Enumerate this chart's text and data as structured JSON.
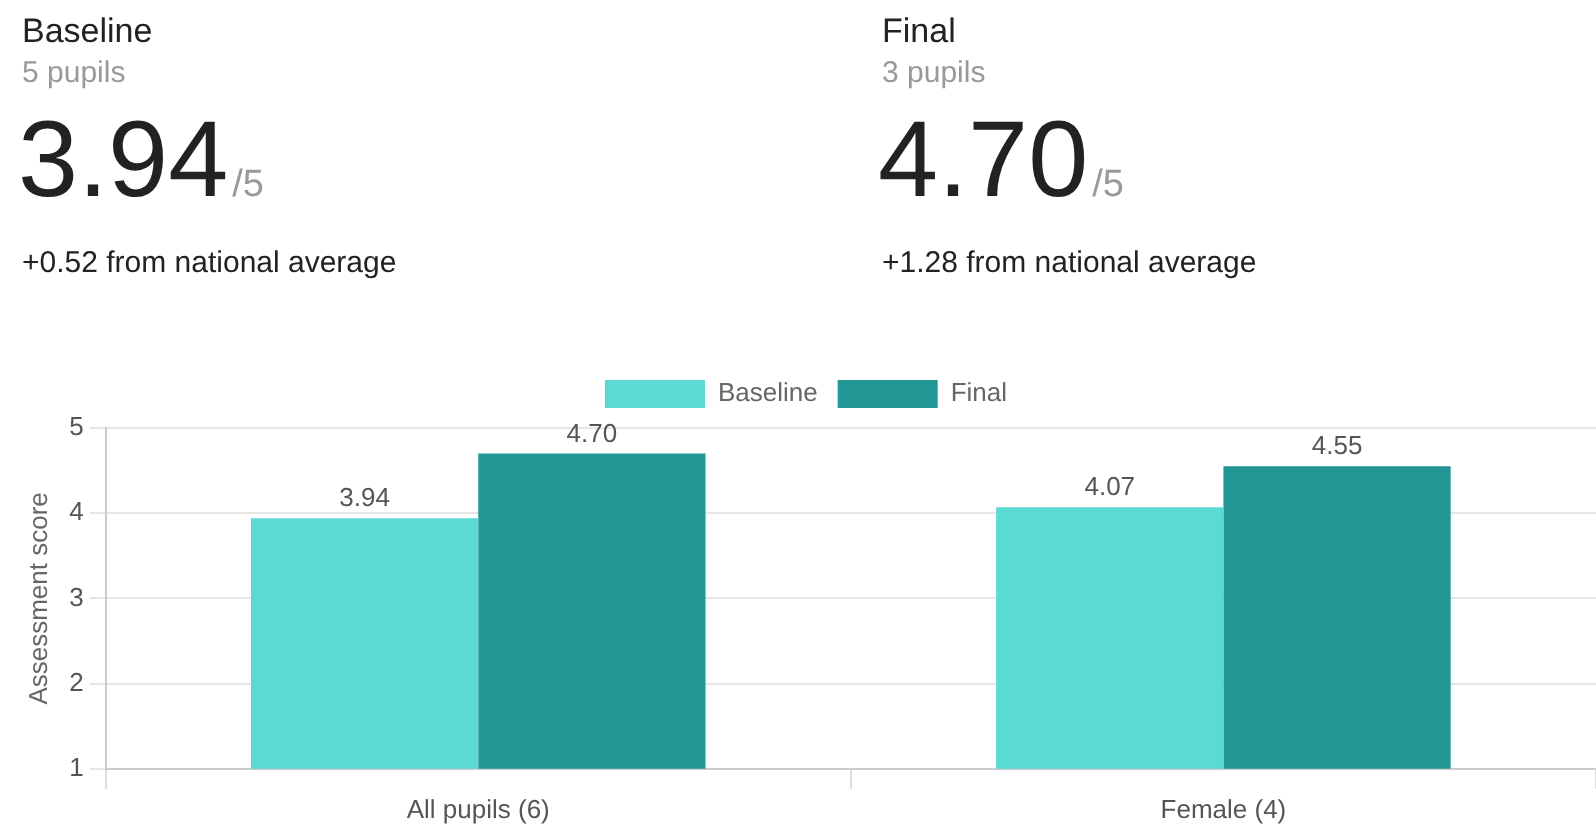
{
  "chart_data": [
    {
      "type": "other",
      "title": "Baseline",
      "subtitle": "5 pupils",
      "annotations": [
        "3.94",
        "/5",
        "+0.52 from national average"
      ]
    },
    {
      "type": "other",
      "title": "Final",
      "subtitle": "3 pupils",
      "annotations": [
        "4.70",
        "/5",
        "+1.28 from national average"
      ]
    },
    {
      "type": "bar",
      "ylabel": "Assessment score",
      "categories": [
        "All pupils (6)",
        "Female (4)"
      ],
      "series": [
        {
          "name": "Baseline",
          "color": "#5ad9d5",
          "values": [
            3.94,
            4.07
          ],
          "value_labels": [
            "3.94",
            "4.07"
          ]
        },
        {
          "name": "Final",
          "color": "#239795",
          "values": [
            4.7,
            4.55
          ],
          "value_labels": [
            "4.70",
            "4.55"
          ]
        }
      ],
      "ylim": [
        1,
        5
      ],
      "yticks": [
        1,
        2,
        3,
        4,
        5
      ],
      "grid": "y",
      "legend": "top"
    }
  ]
}
